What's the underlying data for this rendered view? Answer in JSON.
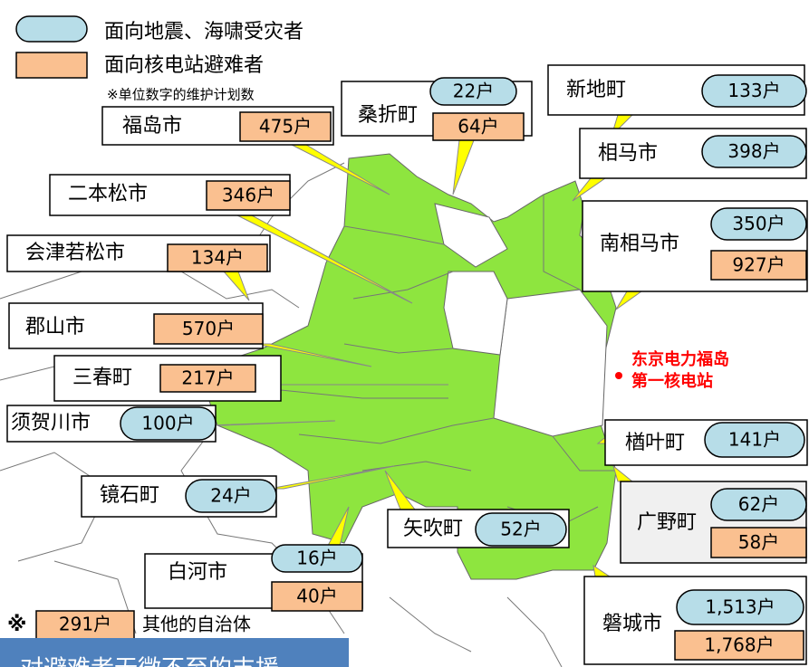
{
  "legend": {
    "disaster": "面向地震、海啸受灾者",
    "nuclear": "面向核电站避难者",
    "note": "※单位数字的维护计划数"
  },
  "municipalities": [
    {
      "name": "福岛市",
      "nuclear": "475户"
    },
    {
      "name": "桑折町",
      "disaster": "22户",
      "nuclear": "64户"
    },
    {
      "name": "新地町",
      "disaster": "133户"
    },
    {
      "name": "相马市",
      "disaster": "398户"
    },
    {
      "name": "二本松市",
      "nuclear": "346户"
    },
    {
      "name": "南相马市",
      "disaster": "350户",
      "nuclear": "927户"
    },
    {
      "name": "会津若松市",
      "nuclear": "134户"
    },
    {
      "name": "郡山市",
      "nuclear": "570户"
    },
    {
      "name": "三春町",
      "nuclear": "217户"
    },
    {
      "name": "须贺川市",
      "disaster": "100户"
    },
    {
      "name": "楢叶町",
      "disaster": "141户"
    },
    {
      "name": "广野町",
      "disaster": "62户",
      "nuclear": "58户"
    },
    {
      "name": "镜石町",
      "disaster": "24户"
    },
    {
      "name": "矢吹町",
      "disaster": "52户"
    },
    {
      "name": "白河市",
      "disaster": "16户",
      "nuclear": "40户"
    },
    {
      "name": "磐城市",
      "disaster": "1,513户",
      "nuclear": "1,768户"
    }
  ],
  "other": {
    "mark": "※",
    "count": "291户",
    "label": "其他的自治体"
  },
  "plant": {
    "line1": "东京电力福岛",
    "line2": "第一核电站"
  },
  "banner": "对避难者无微不至的支援"
}
